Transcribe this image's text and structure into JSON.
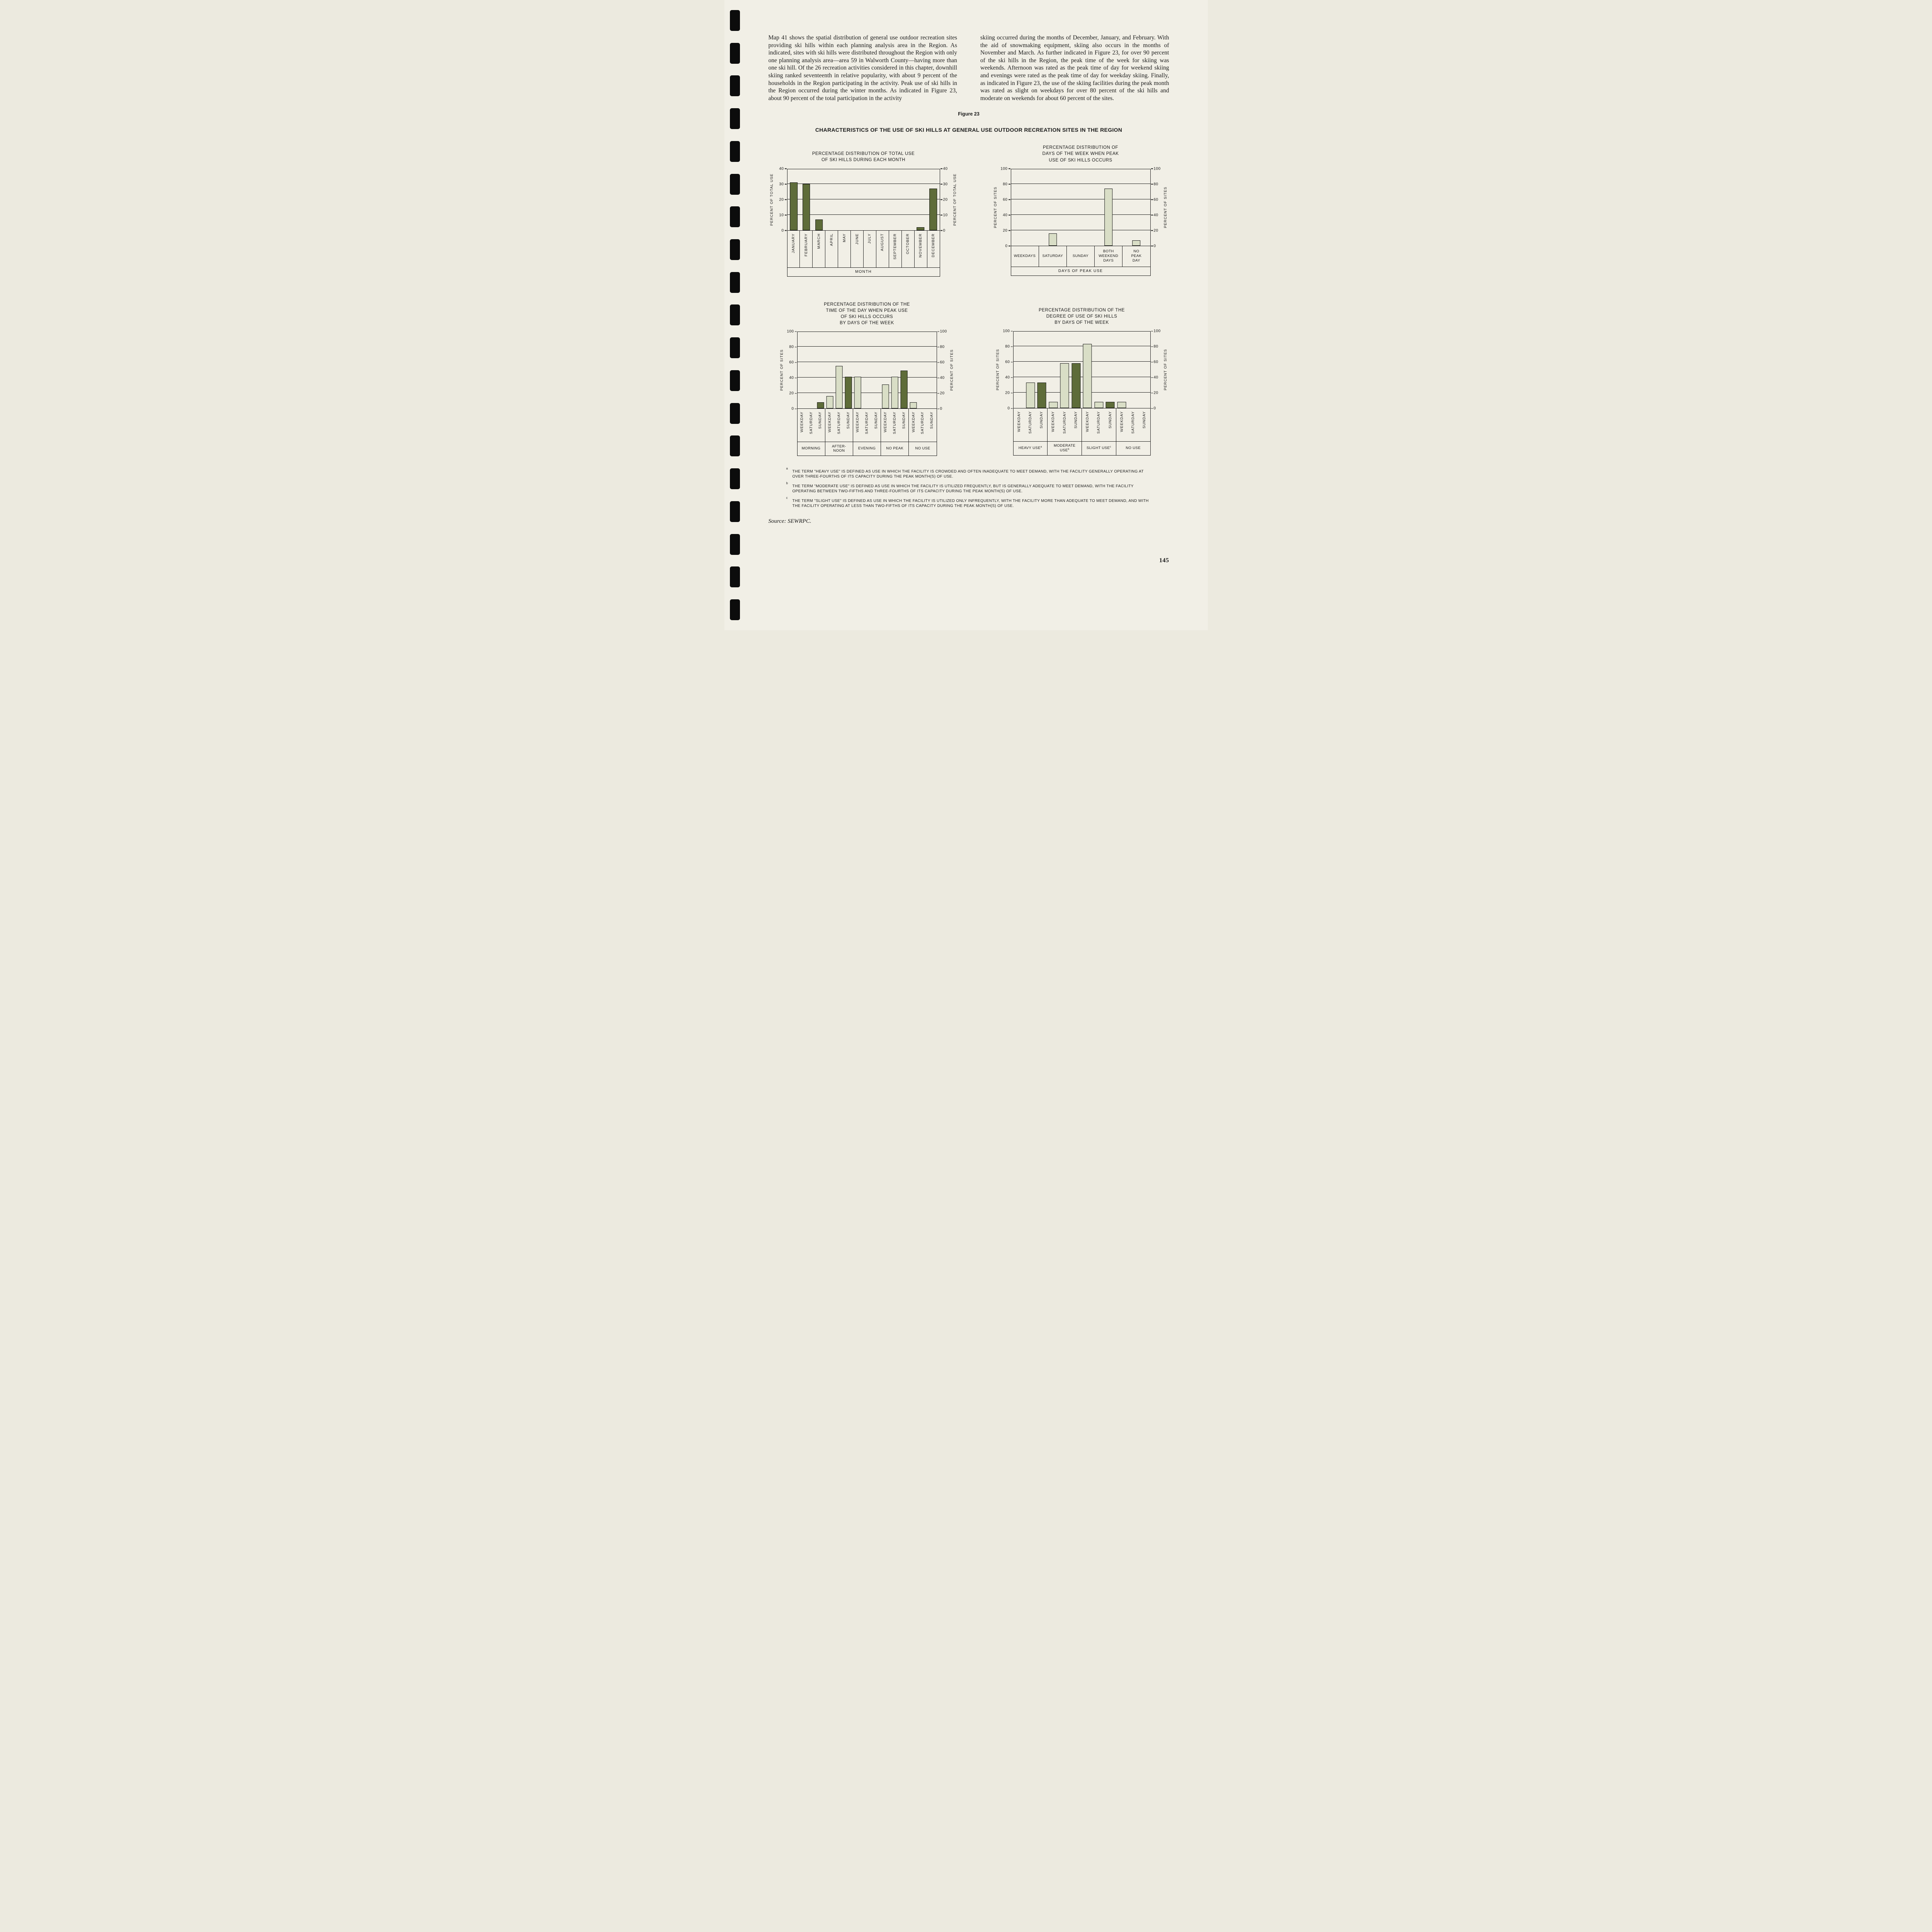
{
  "colors": {
    "dark_bar": "#5e6c39",
    "light_bar": "#d9dec6",
    "ink": "#161616",
    "paper": "#f1efe6"
  },
  "page": {
    "figure_label": "Figure 23",
    "figure_title": "CHARACTERISTICS OF THE USE OF SKI HILLS AT GENERAL USE OUTDOOR RECREATION SITES IN THE REGION",
    "source": "Source:  SEWRPC.",
    "page_number": "145"
  },
  "article": {
    "left_column": "Map 41 shows the spatial distribution of general use outdoor recreation sites providing ski hills within each planning analysis area in the Region. As indicated, sites with ski hills were distributed throughout the Region with only one planning analysis area—area 59 in Walworth County—having more than one ski hill. Of the 26 recreation activities considered in this chapter, downhill skiing ranked seventeenth in relative popularity, with about 9 percent of the households in the Region participating in the activity. Peak use of ski hills in the Region occurred during the winter months. As indicated in Figure 23, about 90 percent of the total participation in the activity",
    "right_column": "skiing occurred during the months of December, January, and February. With the aid of snowmaking equipment, skiing also occurs in the months of November and March. As further indicated in Figure 23, for over 90 percent of the ski hills in the Region, the peak time of the week for skiing was weekends. Afternoon was rated as the peak time of day for weekend skiing and evenings were rated as the peak time of day for weekday skiing. Finally, as indicated in Figure 23, the use of the skiing facilities during the peak month was rated as slight on weekdays for over 80 percent of the ski hills and moderate on weekends for about 60 percent of the sites."
  },
  "footnotes": [
    {
      "marker": "a",
      "text": "THE TERM \"HEAVY USE\" IS DEFINED AS USE IN WHICH THE FACILITY IS CROWDED AND OFTEN INADEQUATE TO MEET DEMAND, WITH THE FACILITY GENERALLY OPERATING AT OVER THREE-FOURTHS OF ITS CAPACITY DURING THE PEAK MONTH(S) OF USE."
    },
    {
      "marker": "b",
      "text": "THE TERM \"MODERATE USE\" IS DEFINED AS USE IN WHICH THE FACILITY IS UTILIZED FREQUENTLY, BUT IS GENERALLY ADEQUATE TO MEET DEMAND, WITH THE FACILITY OPERATING BETWEEN TWO-FIFTHS AND THREE-FOURTHS OF ITS CAPACITY DURING THE PEAK MONTH(S) OF USE."
    },
    {
      "marker": "c",
      "text": "THE TERM \"SLIGHT USE\" IS DEFINED AS USE IN WHICH THE FACILITY IS UTILIZED ONLY INFREQUENTLY, WITH THE FACILITY MORE THAN ADEQUATE TO MEET DEMAND, AND WITH THE FACILITY OPERATING AT LESS THAN TWO-FIFTHS OF ITS CAPACITY DURING THE PEAK MONTH(S) OF USE."
    }
  ],
  "chart_data": [
    {
      "id": "monthly-use",
      "type": "bar",
      "title_lines": [
        "PERCENTAGE DISTRIBUTION OF TOTAL USE",
        "OF SKI HILLS DURING EACH MONTH"
      ],
      "ylabel": "PERCENT OF TOTAL USE",
      "ylim": [
        0,
        40
      ],
      "yticks": [
        0,
        10,
        20,
        30,
        40
      ],
      "categories": [
        "JANUARY",
        "FEBRUARY",
        "MARCH",
        "APRIL",
        "MAY",
        "JUNE",
        "JULY",
        "AUGUST",
        "SEPTEMBER",
        "OCTOBER",
        "NOVEMBER",
        "DECEMBER"
      ],
      "values": [
        31,
        30,
        7,
        0,
        0,
        0,
        0,
        0,
        0,
        0,
        2,
        27
      ],
      "xlabel": "MONTH",
      "bar_color": "dark",
      "grid": true
    },
    {
      "id": "peak-days",
      "type": "bar",
      "title_lines": [
        "PERCENTAGE DISTRIBUTION OF",
        "DAYS OF THE WEEK WHEN PEAK",
        "USE OF SKI HILLS OCCURS"
      ],
      "ylabel": "PERCENT OF SITES",
      "ylim": [
        0,
        100
      ],
      "yticks": [
        0,
        20,
        40,
        60,
        80,
        100
      ],
      "categories": [
        "WEEKDAYS",
        "SATURDAY",
        "SUNDAY",
        "BOTH\nWEEKEND\nDAYS",
        "NO\nPEAK\nDAY"
      ],
      "values": [
        0,
        16,
        0,
        74,
        7
      ],
      "xlabel": "DAYS OF PEAK USE",
      "bar_color": "light",
      "grid": true
    },
    {
      "id": "peak-time",
      "type": "grouped-bar",
      "title_lines": [
        "PERCENTAGE DISTRIBUTION OF THE",
        "TIME OF THE DAY WHEN PEAK USE",
        "OF SKI HILLS OCCURS",
        "BY DAYS OF THE WEEK"
      ],
      "ylabel": "PERCENT OF SITES",
      "ylim": [
        0,
        100
      ],
      "yticks": [
        0,
        20,
        40,
        60,
        80,
        100
      ],
      "series_labels": [
        "WEEKDAY",
        "SATURDAY",
        "SUNDAY"
      ],
      "series_colors": [
        "light",
        "light",
        "dark"
      ],
      "groups": [
        {
          "label": "MORNING",
          "values": [
            0,
            0,
            8
          ]
        },
        {
          "label": "AFTER-\nNOON",
          "values": [
            16,
            55,
            41
          ]
        },
        {
          "label": "EVENING",
          "values": [
            41,
            0,
            0
          ]
        },
        {
          "label": "NO PEAK",
          "values": [
            31,
            41,
            49
          ]
        },
        {
          "label": "NO USE",
          "values": [
            8,
            0,
            0
          ]
        }
      ],
      "grid": true
    },
    {
      "id": "degree-use",
      "type": "grouped-bar",
      "title_lines": [
        "PERCENTAGE DISTRIBUTION OF THE",
        "DEGREE OF USE OF SKI HILLS",
        "BY DAYS OF THE WEEK"
      ],
      "ylabel": "PERCENT OF SITES",
      "ylim": [
        0,
        100
      ],
      "yticks": [
        0,
        20,
        40,
        60,
        80,
        100
      ],
      "series_labels": [
        "WEEKDAY",
        "SATURDAY",
        "SUNDAY"
      ],
      "series_colors": [
        "light",
        "light",
        "dark"
      ],
      "groups": [
        {
          "label": "HEAVY USE",
          "sup": "a",
          "values": [
            0,
            33,
            33
          ]
        },
        {
          "label": "MODERATE\nUSE",
          "sup": "b",
          "values": [
            8,
            58,
            58
          ]
        },
        {
          "label": "SLIGHT USE",
          "sup": "c",
          "values": [
            83,
            8,
            8
          ]
        },
        {
          "label": "NO USE",
          "values": [
            8,
            0,
            0
          ]
        }
      ],
      "grid": true
    }
  ]
}
